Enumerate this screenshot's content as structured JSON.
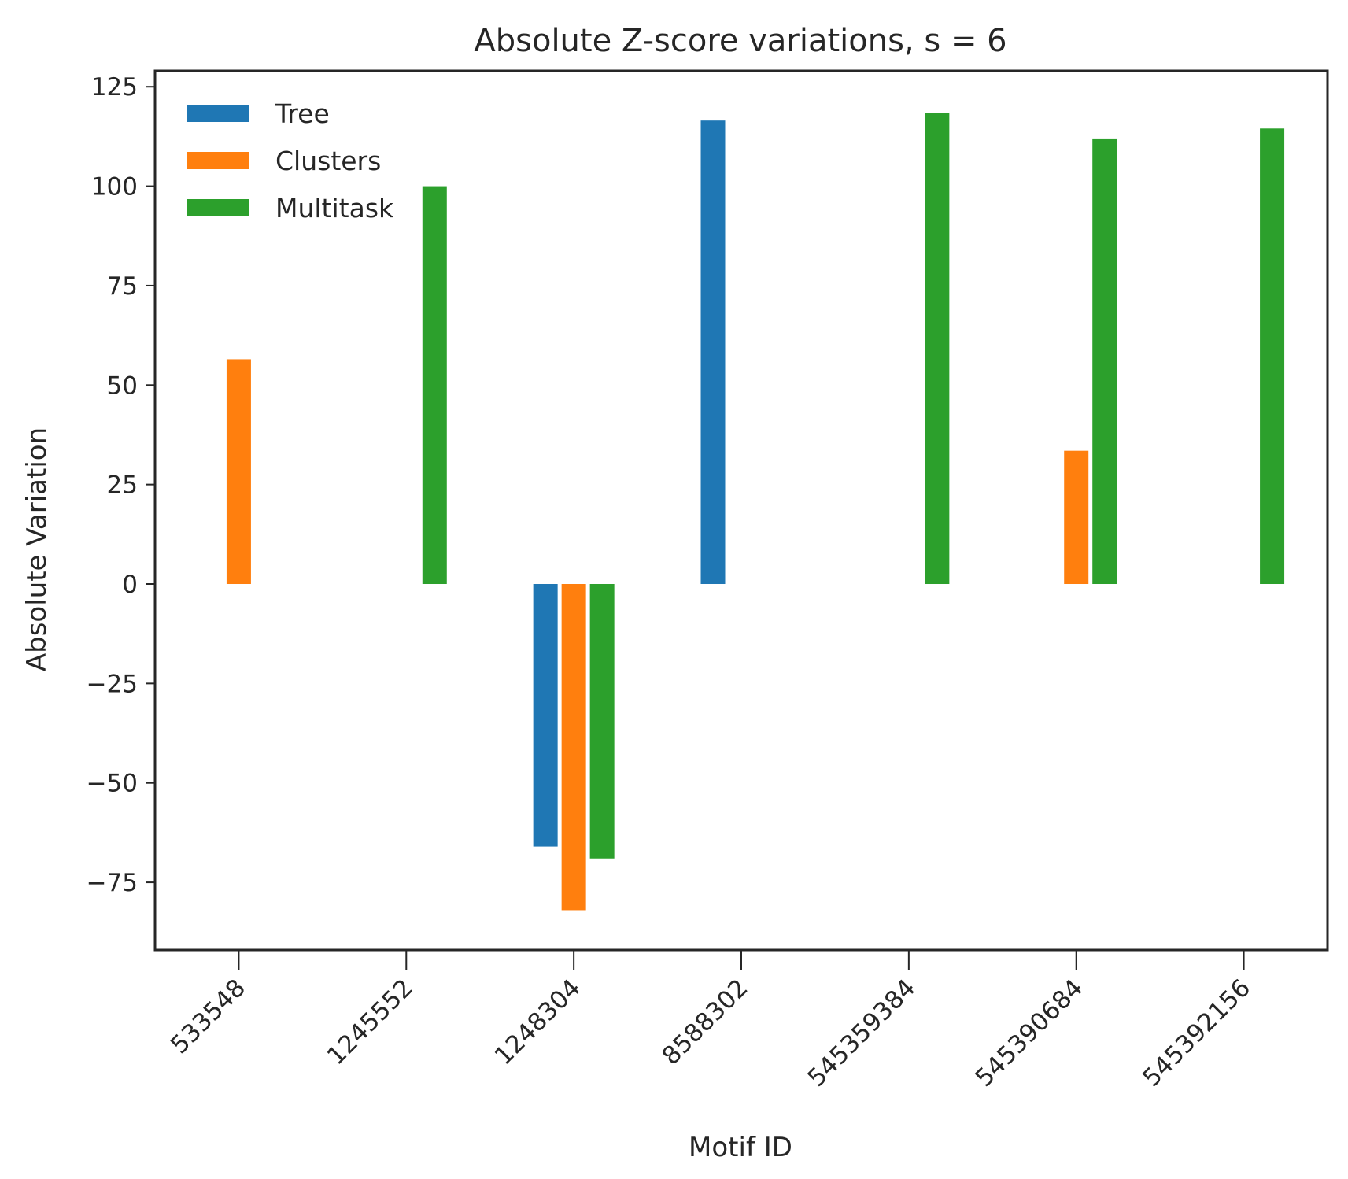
{
  "chart_data": {
    "type": "bar",
    "title": "Absolute Z-score variations, s = 6",
    "xlabel": "Motif ID",
    "ylabel": "Absolute Variation",
    "categories": [
      "533548",
      "1245552",
      "1248304",
      "8588302",
      "545359384",
      "545390684",
      "545392156"
    ],
    "series": [
      {
        "name": "Tree",
        "color": "#1f77b4",
        "values": [
          0,
          0,
          -66,
          116.5,
          0,
          0,
          0
        ]
      },
      {
        "name": "Clusters",
        "color": "#ff7f0e",
        "values": [
          56.5,
          0,
          -82,
          0,
          0,
          33.5,
          0
        ]
      },
      {
        "name": "Multitask",
        "color": "#2ca02c",
        "values": [
          0,
          100,
          -69,
          0,
          118.5,
          112,
          114.5
        ]
      }
    ],
    "ylim": [
      -92,
      129
    ],
    "yticks": [
      -75,
      -50,
      -25,
      0,
      25,
      50,
      75,
      100,
      125
    ],
    "ytick_labels": [
      "−75",
      "−50",
      "−25",
      "0",
      "25",
      "50",
      "75",
      "100",
      "125"
    ],
    "grid": false,
    "legend_position": "top-left"
  }
}
